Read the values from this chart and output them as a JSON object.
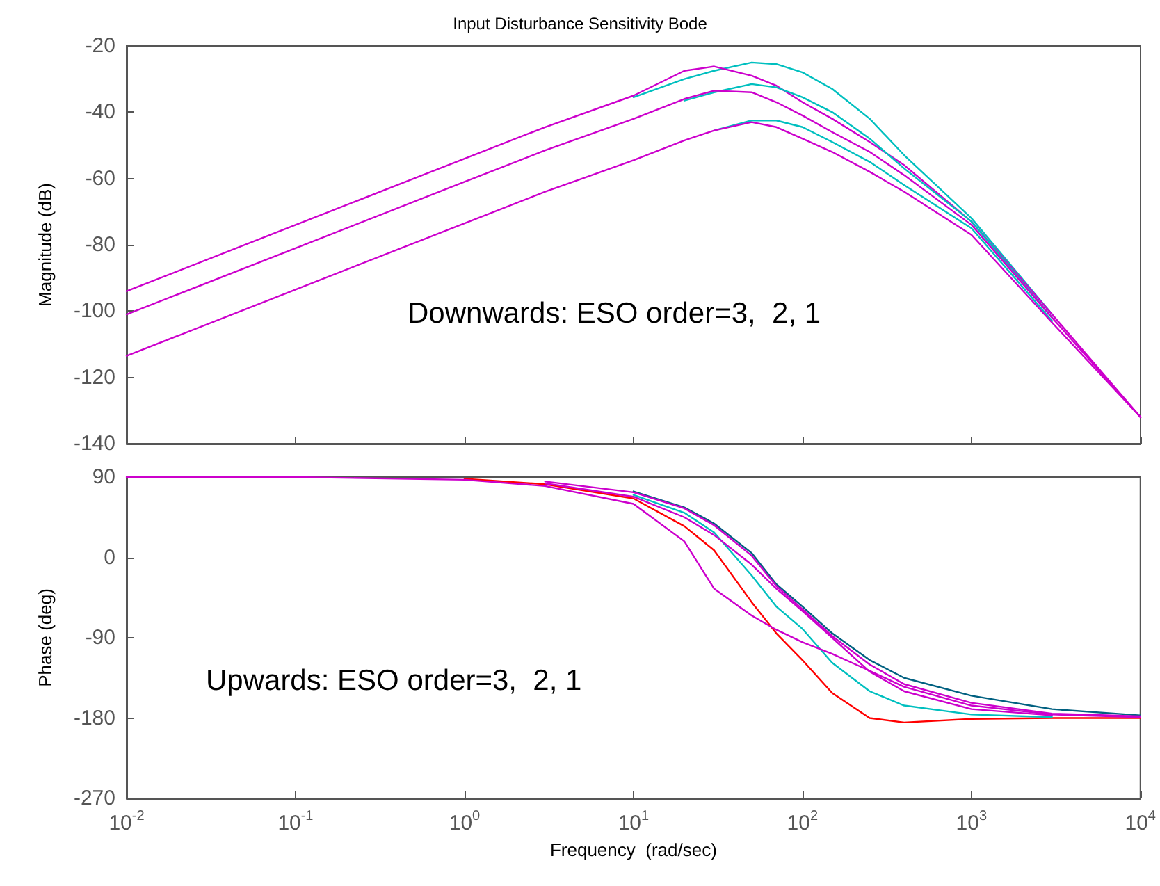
{
  "chart_data": [
    {
      "type": "line",
      "title": "Input Disturbance Sensitivity Bode",
      "ylabel": "Magnitude (dB)",
      "annotations": [
        "Downwards: ESO order=3,  2, 1"
      ],
      "x": [
        0.01,
        0.1,
        1,
        3,
        10,
        20,
        30,
        50,
        70,
        100,
        150,
        250,
        400,
        1000,
        3000,
        10000
      ],
      "series": [
        {
          "color": "#00bfbf",
          "values": [
            null,
            null,
            null,
            null,
            -35.5,
            -30,
            -27.5,
            -25,
            -25.5,
            -28,
            -33,
            -42,
            -53,
            -72,
            -101,
            null
          ]
        },
        {
          "color": "#cc00cc",
          "values": [
            -94,
            -74,
            -54,
            -44.5,
            -35,
            -27.5,
            -26.2,
            -29,
            -32,
            -37,
            -42,
            -49,
            -56,
            -73,
            -101,
            -132
          ]
        },
        {
          "color": "#00bfbf",
          "values": [
            null,
            null,
            null,
            null,
            null,
            -36.5,
            -34,
            -31.5,
            -32.5,
            -35.5,
            -40,
            -48,
            -57,
            -73,
            -102,
            null
          ]
        },
        {
          "color": "#cc00cc",
          "values": [
            -101,
            -81,
            -61,
            -51.5,
            -42,
            -36,
            -33.5,
            -34,
            -37,
            -41,
            -46,
            -52,
            -59,
            -74,
            -102,
            -132
          ]
        },
        {
          "color": "#00bfbf",
          "values": [
            null,
            null,
            null,
            null,
            null,
            null,
            -45.5,
            -42.5,
            -42.5,
            -44.5,
            -49,
            -55,
            -62,
            -75,
            -103,
            null
          ]
        },
        {
          "color": "#cc00cc",
          "values": [
            -113.5,
            -93.5,
            -73.5,
            -64,
            -54.5,
            -48.5,
            -45.5,
            -43,
            -44.5,
            -48,
            -52,
            -58,
            -64,
            -77,
            -103.5,
            -132
          ]
        }
      ],
      "log": "x",
      "xlim": [
        0.01,
        10000
      ],
      "xticks": [
        {
          "value": 0.01,
          "label": null
        },
        {
          "value": 0.1,
          "label": null
        },
        {
          "value": 1,
          "label": null
        },
        {
          "value": 10,
          "label": null
        },
        {
          "value": 100,
          "label": null
        },
        {
          "value": 1000,
          "label": null
        },
        {
          "value": 10000,
          "label": null
        }
      ],
      "ylim": [
        -140,
        -20
      ],
      "yticks": [
        -140,
        -120,
        -100,
        -80,
        -60,
        -40,
        -20
      ],
      "grid": false,
      "marker": "none",
      "line_style": "solid",
      "tick_labels": "y"
    },
    {
      "type": "line",
      "xlabel": "Frequency  (rad/sec)",
      "ylabel": "Phase (deg)",
      "annotations": [
        "Upwards: ESO order=3,  2, 1"
      ],
      "x": [
        0.01,
        0.1,
        1,
        3,
        10,
        20,
        30,
        50,
        70,
        100,
        150,
        250,
        400,
        1000,
        3000,
        10000
      ],
      "series": [
        {
          "color": "#ff0000",
          "values": [
            null,
            null,
            88,
            82,
            66,
            35,
            8,
            -50,
            -85,
            -115,
            -152,
            -180,
            -185,
            -181,
            -180,
            -180
          ]
        },
        {
          "color": "#00bfbf",
          "values": [
            null,
            null,
            null,
            null,
            70,
            50,
            28,
            -20,
            -55,
            -80,
            -118,
            -150,
            -166,
            -176,
            -179,
            null
          ]
        },
        {
          "color": "#006080",
          "values": [
            null,
            null,
            null,
            null,
            74,
            56,
            38,
            5,
            -30,
            -55,
            -85,
            -115,
            -135,
            -155,
            -170,
            -177
          ]
        },
        {
          "color": "#cc00cc",
          "values": [
            90,
            90,
            87,
            80,
            60,
            18,
            -35,
            -65,
            -81,
            -95,
            -108,
            -127,
            -145,
            -166,
            -176,
            -179
          ]
        },
        {
          "color": "#cc00cc",
          "values": [
            null,
            null,
            null,
            83,
            68,
            45,
            25,
            -8,
            -35,
            -60,
            -90,
            -128,
            -150,
            -170,
            -177,
            null
          ]
        },
        {
          "color": "#cc00cc",
          "values": [
            null,
            null,
            null,
            85,
            73,
            55,
            36,
            2,
            -32,
            -58,
            -88,
            -120,
            -142,
            -163,
            -175,
            -178
          ]
        }
      ],
      "log": "x",
      "xlim": [
        0.01,
        10000
      ],
      "xticks": [
        {
          "value": 0.01,
          "label": "10$^{-2}$"
        },
        {
          "value": 0.1,
          "label": "10$^{-1}$"
        },
        {
          "value": 1,
          "label": "10$^{0}$"
        },
        {
          "value": 10,
          "label": "10$^{1}$"
        },
        {
          "value": 100,
          "label": "10$^{2}$"
        },
        {
          "value": 1000,
          "label": "10$^{3}$"
        },
        {
          "value": 10000,
          "label": "10$^{4}$"
        }
      ],
      "ylim": [
        -270,
        90
      ],
      "yticks": [
        -270,
        -180,
        -90,
        0,
        90
      ],
      "grid": false,
      "marker": "none",
      "line_style": "solid"
    }
  ]
}
